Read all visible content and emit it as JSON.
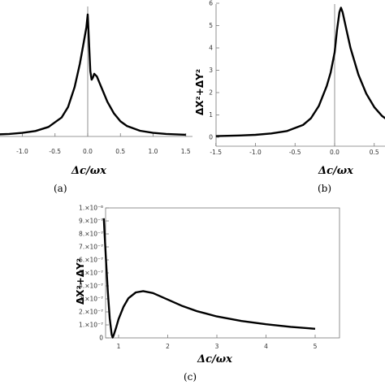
{
  "chart_data": [
    {
      "type": "line",
      "xlabel": "Δc/ωx",
      "ylabel": "",
      "caption": "(a)",
      "x_ticks": [
        "-1.0",
        "-0.5",
        "0.0",
        "0.5",
        "1.0",
        "1.5"
      ],
      "xlim": [
        -1.5,
        1.5
      ],
      "ylim": [
        0,
        6.2
      ],
      "series": [
        {
          "x": [
            -1.5,
            -1.2,
            -1.0,
            -0.8,
            -0.6,
            -0.4,
            -0.3,
            -0.2,
            -0.12,
            -0.06,
            -0.02,
            0.0,
            0.04,
            0.06,
            0.08,
            0.1,
            0.14,
            0.2,
            0.3,
            0.4,
            0.5,
            0.6,
            0.8,
            1.0,
            1.2,
            1.5
          ],
          "y": [
            0.08,
            0.12,
            0.17,
            0.26,
            0.45,
            0.9,
            1.4,
            2.35,
            3.45,
            4.5,
            5.2,
            5.8,
            3.1,
            2.7,
            2.8,
            2.98,
            2.85,
            2.4,
            1.65,
            1.1,
            0.72,
            0.5,
            0.27,
            0.17,
            0.12,
            0.08
          ]
        }
      ]
    },
    {
      "type": "line",
      "xlabel": "Δc/ωx",
      "ylabel": "ΔX²+ΔY²",
      "caption": "(b)",
      "x_ticks": [
        "-1.5",
        "-1.0",
        "-0.5",
        "0.0",
        "0.5"
      ],
      "y_ticks": [
        "0",
        "1",
        "2",
        "3",
        "4",
        "5",
        "6"
      ],
      "xlim": [
        -1.55,
        0.68
      ],
      "ylim": [
        -0.1,
        6.2
      ],
      "series": [
        {
          "x": [
            -1.5,
            -1.2,
            -1.0,
            -0.8,
            -0.6,
            -0.4,
            -0.3,
            -0.2,
            -0.1,
            -0.05,
            0.0,
            0.03,
            0.06,
            0.08,
            0.1,
            0.15,
            0.2,
            0.3,
            0.4,
            0.5,
            0.6,
            0.68
          ],
          "y": [
            0.05,
            0.08,
            0.11,
            0.17,
            0.28,
            0.55,
            0.85,
            1.4,
            2.3,
            2.9,
            3.8,
            4.8,
            5.6,
            5.8,
            5.6,
            4.8,
            4.0,
            2.8,
            1.95,
            1.35,
            0.95,
            0.75
          ]
        }
      ]
    },
    {
      "type": "line",
      "xlabel": "Δc/ωx",
      "ylabel": "ΔX²+ΔY²",
      "caption": "(c)",
      "x_ticks": [
        "1",
        "2",
        "3",
        "4",
        "5"
      ],
      "y_ticks": [
        "0",
        "1.×10⁻⁷",
        "2.×10⁻⁷",
        "3.×10⁻⁷",
        "4.×10⁻⁷",
        "5.×10⁻⁷",
        "6.×10⁻⁷",
        "7.×10⁻⁷",
        "8.×10⁻⁷",
        "9.×10⁻⁷",
        "1.×10⁻⁶"
      ],
      "xlim": [
        0.62,
        5.05
      ],
      "ylim": [
        0,
        1e-06
      ],
      "series": [
        {
          "x": [
            0.7,
            0.74,
            0.78,
            0.82,
            0.86,
            0.88,
            0.9,
            0.95,
            1.0,
            1.1,
            1.2,
            1.35,
            1.5,
            1.7,
            2.0,
            2.3,
            2.6,
            3.0,
            3.5,
            4.0,
            4.5,
            5.0
          ],
          "y": [
            9.2e-07,
            6.2e-07,
            3.6e-07,
            1.5e-07,
            2.5e-08,
            3e-09,
            2e-08,
            8e-08,
            1.45e-07,
            2.4e-07,
            3.05e-07,
            3.5e-07,
            3.6e-07,
            3.45e-07,
            2.95e-07,
            2.45e-07,
            2.05e-07,
            1.65e-07,
            1.3e-07,
            1.05e-07,
            8.5e-08,
            7e-08
          ]
        }
      ]
    }
  ]
}
